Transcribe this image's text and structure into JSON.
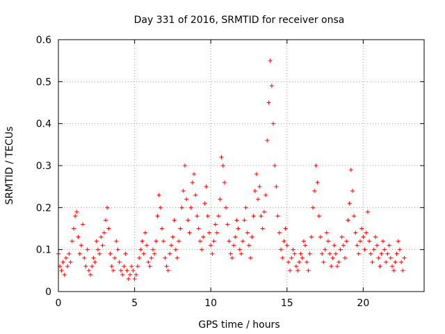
{
  "chart_data": {
    "type": "scatter",
    "title": "Day 331 of 2016, SRMTID for receiver onsa",
    "xlabel": "GPS time / hours",
    "ylabel": "SRMTID / TECUs",
    "xlim": [
      0,
      24
    ],
    "ylim": [
      0,
      0.6
    ],
    "xticks": [
      0,
      5,
      10,
      15,
      20
    ],
    "yticks": [
      0,
      0.1,
      0.2,
      0.3,
      0.4,
      0.5,
      0.6
    ],
    "xtick_labels": [
      "0",
      "5",
      "10",
      "15",
      "20"
    ],
    "ytick_labels": [
      "0",
      "0.1",
      "0.2",
      "0.3",
      "0.4",
      "0.5",
      "0.6"
    ],
    "grid": true,
    "marker": "+",
    "color": "#ff0000",
    "series": [
      {
        "name": "SRMTID",
        "points": [
          [
            0.0,
            0.09
          ],
          [
            0.1,
            0.06
          ],
          [
            0.2,
            0.05
          ],
          [
            0.3,
            0.07
          ],
          [
            0.4,
            0.04
          ],
          [
            0.5,
            0.08
          ],
          [
            0.6,
            0.06
          ],
          [
            0.7,
            0.09
          ],
          [
            0.8,
            0.07
          ],
          [
            0.9,
            0.12
          ],
          [
            1.0,
            0.15
          ],
          [
            1.1,
            0.18
          ],
          [
            1.2,
            0.19
          ],
          [
            1.3,
            0.13
          ],
          [
            1.4,
            0.09
          ],
          [
            1.5,
            0.11
          ],
          [
            1.6,
            0.16
          ],
          [
            1.7,
            0.08
          ],
          [
            1.8,
            0.06
          ],
          [
            1.9,
            0.1
          ],
          [
            2.0,
            0.05
          ],
          [
            2.1,
            0.04
          ],
          [
            2.2,
            0.06
          ],
          [
            2.3,
            0.08
          ],
          [
            2.4,
            0.07
          ],
          [
            2.5,
            0.12
          ],
          [
            2.6,
            0.1
          ],
          [
            2.7,
            0.09
          ],
          [
            2.8,
            0.13
          ],
          [
            2.9,
            0.11
          ],
          [
            3.0,
            0.14
          ],
          [
            3.1,
            0.17
          ],
          [
            3.2,
            0.2
          ],
          [
            3.3,
            0.15
          ],
          [
            3.4,
            0.09
          ],
          [
            3.5,
            0.06
          ],
          [
            3.6,
            0.05
          ],
          [
            3.7,
            0.08
          ],
          [
            3.8,
            0.12
          ],
          [
            3.9,
            0.1
          ],
          [
            4.0,
            0.07
          ],
          [
            4.1,
            0.05
          ],
          [
            4.2,
            0.04
          ],
          [
            4.3,
            0.06
          ],
          [
            4.4,
            0.09
          ],
          [
            4.5,
            0.05
          ],
          [
            4.6,
            0.03
          ],
          [
            4.7,
            0.04
          ],
          [
            4.8,
            0.06
          ],
          [
            4.9,
            0.05
          ],
          [
            5.0,
            0.03
          ],
          [
            5.1,
            0.04
          ],
          [
            5.2,
            0.06
          ],
          [
            5.3,
            0.08
          ],
          [
            5.4,
            0.1
          ],
          [
            5.5,
            0.12
          ],
          [
            5.6,
            0.09
          ],
          [
            5.7,
            0.14
          ],
          [
            5.8,
            0.11
          ],
          [
            5.9,
            0.07
          ],
          [
            6.0,
            0.06
          ],
          [
            6.1,
            0.08
          ],
          [
            6.2,
            0.1
          ],
          [
            6.3,
            0.09
          ],
          [
            6.4,
            0.12
          ],
          [
            6.5,
            0.18
          ],
          [
            6.6,
            0.23
          ],
          [
            6.7,
            0.2
          ],
          [
            6.8,
            0.15
          ],
          [
            6.9,
            0.12
          ],
          [
            7.0,
            0.08
          ],
          [
            7.1,
            0.06
          ],
          [
            7.2,
            0.05
          ],
          [
            7.3,
            0.09
          ],
          [
            7.4,
            0.11
          ],
          [
            7.5,
            0.13
          ],
          [
            7.6,
            0.17
          ],
          [
            7.7,
            0.1
          ],
          [
            7.8,
            0.08
          ],
          [
            7.9,
            0.12
          ],
          [
            8.0,
            0.15
          ],
          [
            8.1,
            0.2
          ],
          [
            8.2,
            0.24
          ],
          [
            8.3,
            0.3
          ],
          [
            8.4,
            0.22
          ],
          [
            8.5,
            0.17
          ],
          [
            8.6,
            0.14
          ],
          [
            8.7,
            0.2
          ],
          [
            8.8,
            0.26
          ],
          [
            8.9,
            0.28
          ],
          [
            9.0,
            0.23
          ],
          [
            9.1,
            0.18
          ],
          [
            9.2,
            0.15
          ],
          [
            9.3,
            0.12
          ],
          [
            9.4,
            0.1
          ],
          [
            9.5,
            0.13
          ],
          [
            9.6,
            0.21
          ],
          [
            9.7,
            0.25
          ],
          [
            9.8,
            0.18
          ],
          [
            9.9,
            0.14
          ],
          [
            10.0,
            0.11
          ],
          [
            10.1,
            0.09
          ],
          [
            10.2,
            0.12
          ],
          [
            10.3,
            0.16
          ],
          [
            10.4,
            0.14
          ],
          [
            10.5,
            0.18
          ],
          [
            10.6,
            0.22
          ],
          [
            10.7,
            0.32
          ],
          [
            10.8,
            0.3
          ],
          [
            10.9,
            0.26
          ],
          [
            11.0,
            0.2
          ],
          [
            11.1,
            0.16
          ],
          [
            11.2,
            0.12
          ],
          [
            11.3,
            0.09
          ],
          [
            11.4,
            0.08
          ],
          [
            11.5,
            0.11
          ],
          [
            11.6,
            0.13
          ],
          [
            11.7,
            0.17
          ],
          [
            11.8,
            0.15
          ],
          [
            11.9,
            0.1
          ],
          [
            12.0,
            0.09
          ],
          [
            12.1,
            0.12
          ],
          [
            12.2,
            0.17
          ],
          [
            12.3,
            0.2
          ],
          [
            12.4,
            0.14
          ],
          [
            12.5,
            0.11
          ],
          [
            12.6,
            0.08
          ],
          [
            12.7,
            0.13
          ],
          [
            12.8,
            0.18
          ],
          [
            12.9,
            0.24
          ],
          [
            13.0,
            0.28
          ],
          [
            13.1,
            0.22
          ],
          [
            13.2,
            0.25
          ],
          [
            13.3,
            0.18
          ],
          [
            13.4,
            0.15
          ],
          [
            13.5,
            0.19
          ],
          [
            13.6,
            0.23
          ],
          [
            13.7,
            0.36
          ],
          [
            13.8,
            0.45
          ],
          [
            13.9,
            0.55
          ],
          [
            14.0,
            0.49
          ],
          [
            14.1,
            0.4
          ],
          [
            14.2,
            0.3
          ],
          [
            14.3,
            0.25
          ],
          [
            14.4,
            0.18
          ],
          [
            14.5,
            0.14
          ],
          [
            14.6,
            0.1
          ],
          [
            14.7,
            0.08
          ],
          [
            14.8,
            0.12
          ],
          [
            14.9,
            0.15
          ],
          [
            15.0,
            0.11
          ],
          [
            15.1,
            0.07
          ],
          [
            15.2,
            0.05
          ],
          [
            15.3,
            0.08
          ],
          [
            15.4,
            0.1
          ],
          [
            15.5,
            0.09
          ],
          [
            15.6,
            0.06
          ],
          [
            15.7,
            0.05
          ],
          [
            15.8,
            0.07
          ],
          [
            15.9,
            0.09
          ],
          [
            16.0,
            0.08
          ],
          [
            16.1,
            0.12
          ],
          [
            16.2,
            0.11
          ],
          [
            16.3,
            0.07
          ],
          [
            16.4,
            0.05
          ],
          [
            16.5,
            0.09
          ],
          [
            16.6,
            0.13
          ],
          [
            16.7,
            0.2
          ],
          [
            16.8,
            0.24
          ],
          [
            16.9,
            0.3
          ],
          [
            17.0,
            0.26
          ],
          [
            17.1,
            0.18
          ],
          [
            17.2,
            0.13
          ],
          [
            17.3,
            0.09
          ],
          [
            17.4,
            0.07
          ],
          [
            17.5,
            0.1
          ],
          [
            17.6,
            0.14
          ],
          [
            17.7,
            0.12
          ],
          [
            17.8,
            0.09
          ],
          [
            17.9,
            0.06
          ],
          [
            18.0,
            0.08
          ],
          [
            18.1,
            0.11
          ],
          [
            18.2,
            0.09
          ],
          [
            18.3,
            0.06
          ],
          [
            18.4,
            0.07
          ],
          [
            18.5,
            0.1
          ],
          [
            18.6,
            0.13
          ],
          [
            18.7,
            0.11
          ],
          [
            18.8,
            0.08
          ],
          [
            18.9,
            0.12
          ],
          [
            19.0,
            0.17
          ],
          [
            19.1,
            0.21
          ],
          [
            19.2,
            0.29
          ],
          [
            19.3,
            0.24
          ],
          [
            19.4,
            0.18
          ],
          [
            19.5,
            0.14
          ],
          [
            19.6,
            0.11
          ],
          [
            19.7,
            0.09
          ],
          [
            19.8,
            0.12
          ],
          [
            19.9,
            0.15
          ],
          [
            20.0,
            0.13
          ],
          [
            20.1,
            0.1
          ],
          [
            20.2,
            0.14
          ],
          [
            20.3,
            0.19
          ],
          [
            20.4,
            0.12
          ],
          [
            20.5,
            0.09
          ],
          [
            20.6,
            0.07
          ],
          [
            20.7,
            0.1
          ],
          [
            20.8,
            0.13
          ],
          [
            20.9,
            0.11
          ],
          [
            21.0,
            0.08
          ],
          [
            21.1,
            0.06
          ],
          [
            21.2,
            0.09
          ],
          [
            21.3,
            0.12
          ],
          [
            21.4,
            0.1
          ],
          [
            21.5,
            0.07
          ],
          [
            21.6,
            0.09
          ],
          [
            21.7,
            0.11
          ],
          [
            21.8,
            0.08
          ],
          [
            21.9,
            0.06
          ],
          [
            22.0,
            0.05
          ],
          [
            22.1,
            0.07
          ],
          [
            22.2,
            0.09
          ],
          [
            22.3,
            0.12
          ],
          [
            22.4,
            0.1
          ],
          [
            22.5,
            0.07
          ],
          [
            22.6,
            0.05
          ],
          [
            22.7,
            0.08
          ]
        ]
      }
    ]
  }
}
